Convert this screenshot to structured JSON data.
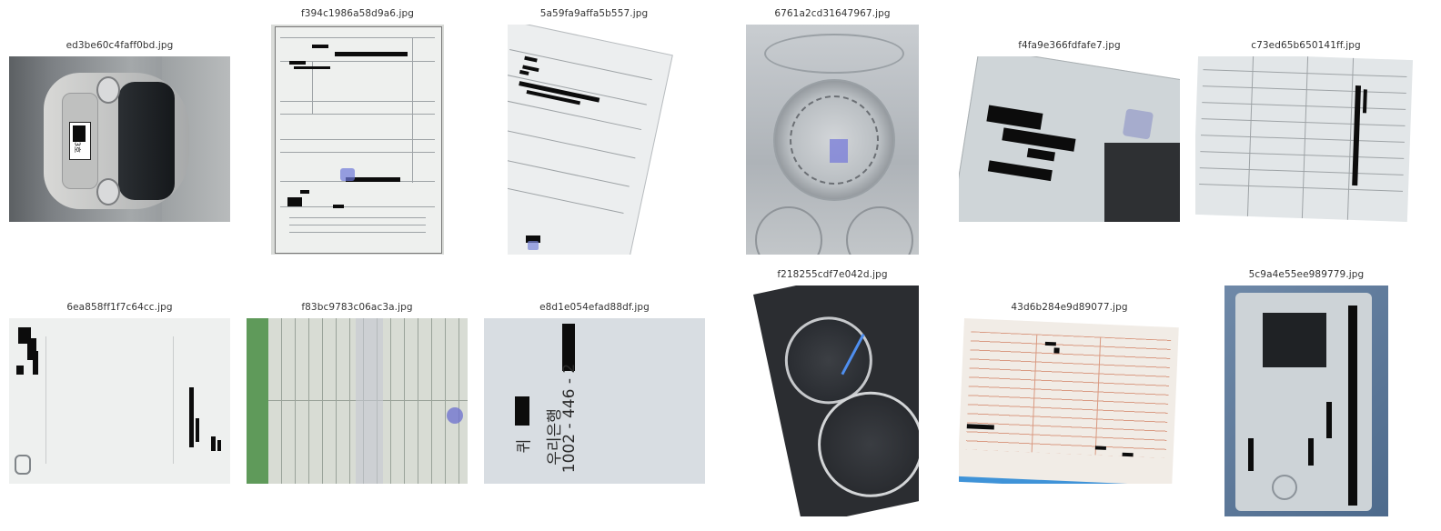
{
  "gallery": {
    "row1": [
      {
        "filename": "ed3be60c4faff0bd.jpg",
        "plate": "23호"
      },
      {
        "filename": "f394c1986a58d9a6.jpg"
      },
      {
        "filename": "5a59fa9affa5b557.jpg"
      },
      {
        "filename": "6761a2cd31647967.jpg"
      },
      {
        "filename": "f4fa9e366fdfafe7.jpg"
      },
      {
        "filename": "c73ed65b650141ff.jpg"
      }
    ],
    "row2": [
      {
        "filename": "6ea858ff1f7c64cc.jpg"
      },
      {
        "filename": "f83bc9783c06ac3a.jpg"
      },
      {
        "filename": "e8d1e054efad88df.jpg",
        "handwriting": [
          "1002 - 446 - 2",
          "우리은행",
          "퀴"
        ]
      },
      {
        "filename": "f218255cdf7e042d.jpg"
      },
      {
        "filename": "43d6b284e9d89077.jpg"
      },
      {
        "filename": "5c9a4e55ee989779.jpg"
      }
    ]
  },
  "colors": {
    "background": "#ffffff",
    "caption": "#333333",
    "redaction": "#0c0c0c",
    "paper": "#f3f4f2"
  },
  "icons": [
    "image-thumbnail"
  ]
}
